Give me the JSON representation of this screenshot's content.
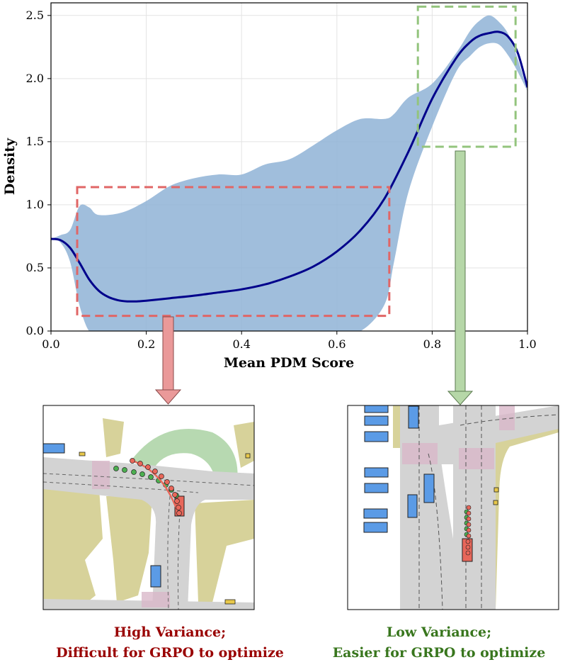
{
  "chart_data": {
    "type": "area",
    "xlabel": "Mean PDM Score",
    "ylabel": "Density",
    "xlim": [
      0.0,
      1.0
    ],
    "ylim": [
      0.0,
      2.6
    ],
    "xticks": [
      "0.0",
      "0.2",
      "0.4",
      "0.6",
      "0.8",
      "1.0"
    ],
    "yticks": [
      "0.0",
      "0.5",
      "1.0",
      "1.5",
      "2.0",
      "2.5"
    ],
    "grid": true,
    "series": [
      {
        "style": "line",
        "color": "#00008B",
        "x": [
          0.0,
          0.02,
          0.04,
          0.06,
          0.08,
          0.1,
          0.12,
          0.14,
          0.16,
          0.18,
          0.2,
          0.25,
          0.3,
          0.35,
          0.4,
          0.45,
          0.5,
          0.55,
          0.6,
          0.65,
          0.7,
          0.75,
          0.8,
          0.85,
          0.88,
          0.9,
          0.92,
          0.94,
          0.96,
          0.98,
          1.0
        ],
        "y": [
          0.73,
          0.72,
          0.66,
          0.54,
          0.41,
          0.32,
          0.27,
          0.245,
          0.235,
          0.235,
          0.24,
          0.26,
          0.28,
          0.305,
          0.33,
          0.37,
          0.43,
          0.51,
          0.63,
          0.8,
          1.05,
          1.42,
          1.84,
          2.16,
          2.29,
          2.34,
          2.36,
          2.37,
          2.33,
          2.2,
          1.93
        ]
      },
      {
        "style": "band",
        "color": "#8FB3D6",
        "x": [
          0.0,
          0.02,
          0.04,
          0.06,
          0.08,
          0.1,
          0.15,
          0.2,
          0.25,
          0.3,
          0.35,
          0.4,
          0.45,
          0.5,
          0.55,
          0.6,
          0.65,
          0.7,
          0.72,
          0.75,
          0.8,
          0.85,
          0.88,
          0.9,
          0.92,
          0.94,
          0.96,
          0.98,
          1.0
        ],
        "upper": [
          0.73,
          0.76,
          0.8,
          0.99,
          0.98,
          0.92,
          0.94,
          1.03,
          1.15,
          1.21,
          1.24,
          1.24,
          1.32,
          1.36,
          1.47,
          1.59,
          1.68,
          1.68,
          1.72,
          1.85,
          1.96,
          2.2,
          2.38,
          2.46,
          2.5,
          2.45,
          2.35,
          2.15,
          1.9
        ],
        "lower": [
          0.73,
          0.7,
          0.55,
          0.2,
          0.0,
          0.0,
          0.0,
          0.0,
          0.0,
          0.0,
          0.0,
          0.0,
          0.0,
          0.0,
          0.0,
          0.0,
          0.0,
          0.21,
          0.55,
          1.1,
          1.62,
          2.05,
          2.18,
          2.25,
          2.28,
          2.27,
          2.18,
          2.05,
          1.9
        ]
      }
    ],
    "annotations": [
      {
        "label": "high-variance-region",
        "x_range": [
          0.055,
          0.71
        ],
        "y_range": [
          0.12,
          1.14
        ],
        "color": "#E06666"
      },
      {
        "label": "low-variance-region",
        "x_range": [
          0.77,
          0.975
        ],
        "y_range": [
          1.46,
          2.57
        ],
        "color": "#93C47D"
      }
    ]
  },
  "captions": {
    "left": {
      "line1": "High Variance;",
      "line2": "Difficult for GRPO to optimize",
      "color": "#990000"
    },
    "right": {
      "line1": "Low Variance;",
      "line2": "Easier for GRPO to optimize",
      "color": "#38761D"
    }
  },
  "colors": {
    "road": "#D3D3D3",
    "sidewalk": "#D7D29A",
    "crosswalk": "#D9B8C9",
    "route": "#B7D9B1",
    "vehicle": "#5B9BE6",
    "ego": "#E8675A",
    "trajectory_red": "#E8675A",
    "trajectory_green": "#4CAF50",
    "arrow_red": "#EA9999",
    "arrow_green": "#B6D7A8"
  }
}
